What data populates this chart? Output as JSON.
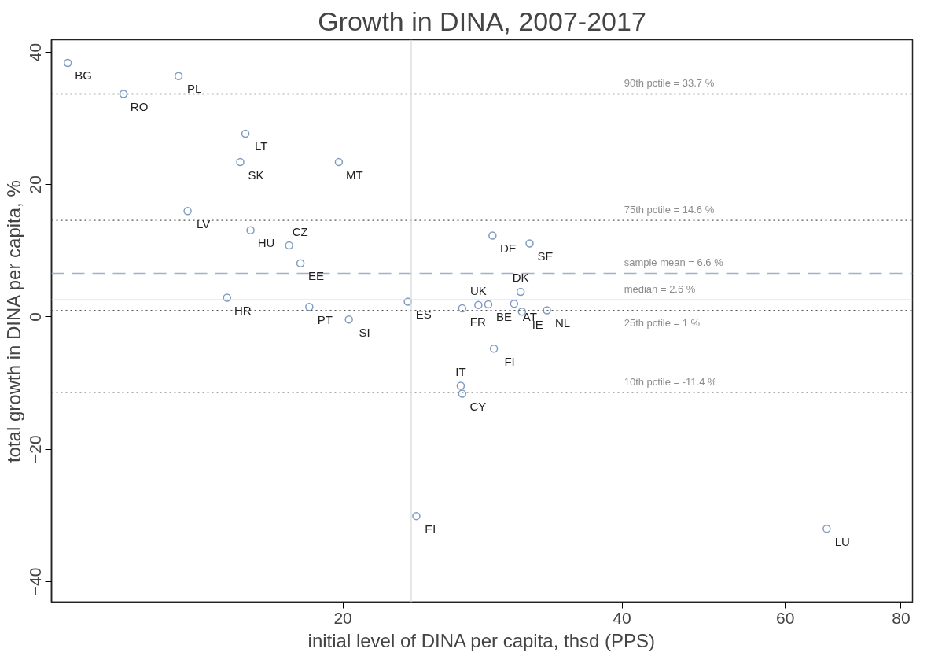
{
  "chart_data": {
    "type": "scatter",
    "title": "Growth in DINA, 2007-2017",
    "xlabel": "initial level of DINA per capita, thsd (PPS)",
    "ylabel": "total growth in DINA per capita, %",
    "log": "x",
    "xlim": [
      9.7,
      82.3
    ],
    "ylim": [
      -43.1,
      41.9
    ],
    "xticks": [
      20,
      40,
      60,
      80
    ],
    "yticks": [
      -40,
      -20,
      0,
      20,
      40
    ],
    "grid": false,
    "marker": "circle",
    "series": [
      {
        "color": "#7f9cc0",
        "x": [
          10.1,
          11.6,
          13.3,
          15.7,
          15.5,
          19.8,
          13.6,
          15.9,
          17.5,
          18.0,
          15.0,
          18.4,
          20.3,
          23.5,
          24.0,
          26.9,
          28.0,
          28.7,
          29.0,
          31.8,
          31.1,
          30.6,
          31.2,
          33.2,
          29.1,
          26.8,
          26.9,
          66.5
        ],
        "values": [
          38.4,
          33.7,
          36.4,
          27.7,
          23.4,
          23.4,
          16.0,
          13.1,
          10.8,
          8.1,
          2.9,
          1.5,
          -0.4,
          2.3,
          -30.1,
          1.3,
          1.8,
          1.9,
          12.3,
          11.1,
          3.8,
          2.0,
          0.8,
          1.0,
          -4.8,
          -10.4,
          -11.6,
          -32.0
        ],
        "value_labels": [
          "BG",
          "RO",
          "PL",
          "LT",
          "SK",
          "MT",
          "LV",
          "HU",
          "CZ",
          "EE",
          "HR",
          "PT",
          "SI",
          "ES",
          "EL",
          "FR",
          "UK",
          "BE",
          "DE",
          "SE",
          "DK",
          "AT",
          "IE",
          "NL",
          "FI",
          "IT",
          "CY",
          "LU"
        ]
      }
    ],
    "ref_lines": [
      {
        "axis": "y",
        "value": 33.7,
        "label": "90th pctile = 33.7 %",
        "color": "#555555",
        "line_style": "dotted"
      },
      {
        "axis": "y",
        "value": 14.6,
        "label": "75th pctile = 14.6 %",
        "color": "#555555",
        "line_style": "dotted"
      },
      {
        "axis": "y",
        "value": 6.6,
        "label": "sample mean = 6.6 %",
        "color": "#9db3cc",
        "line_style": "dashed"
      },
      {
        "axis": "y",
        "value": 2.6,
        "label": "median = 2.6 %",
        "color": "#d9d9d9",
        "line_style": "solid"
      },
      {
        "axis": "y",
        "value": 1,
        "label": "25th pctile = 1 %",
        "color": "#555555",
        "line_style": "dotted"
      },
      {
        "axis": "y",
        "value": -11.4,
        "label": "10th pctile = -11.4 %",
        "color": "#555555",
        "line_style": "dotted"
      },
      {
        "axis": "x",
        "value": 23.7,
        "color": "#d9d9d9",
        "line_style": "solid"
      }
    ]
  }
}
